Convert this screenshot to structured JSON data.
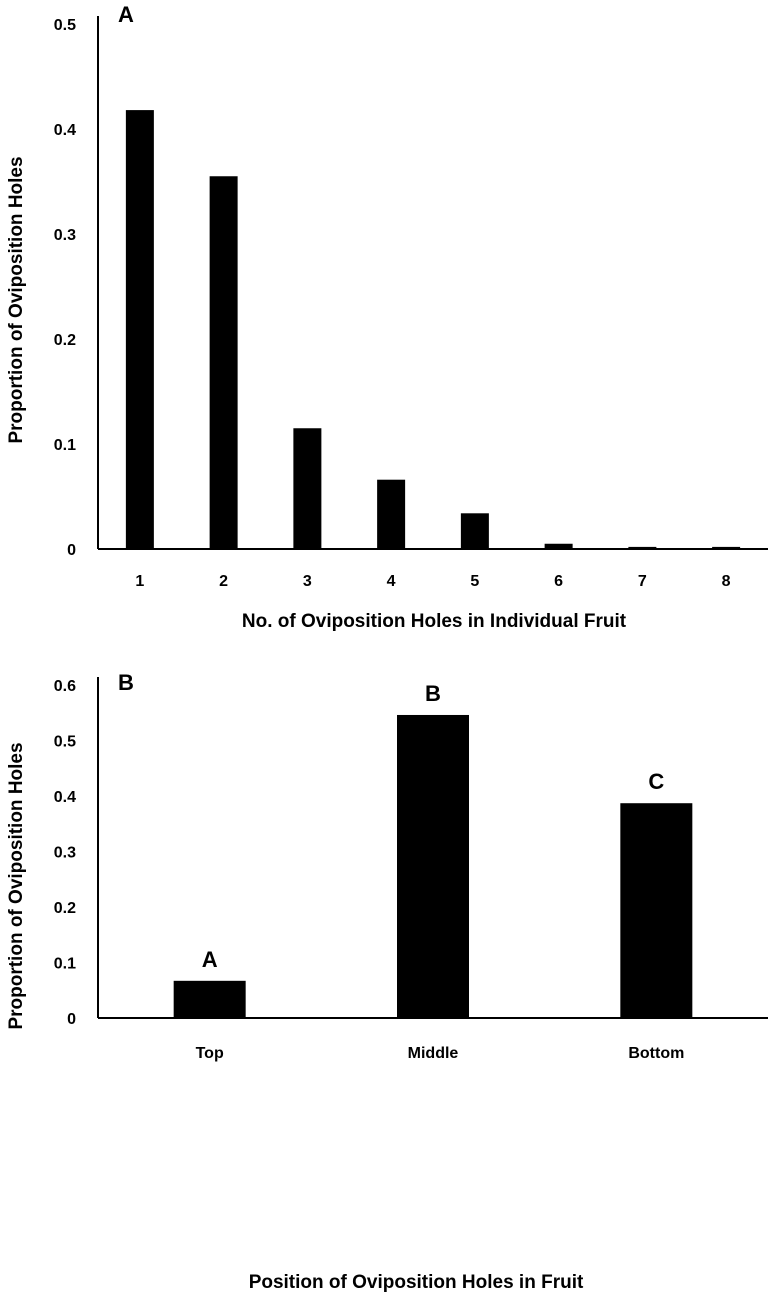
{
  "chart_data": [
    {
      "type": "bar",
      "panel_label": "A",
      "categories": [
        "1",
        "2",
        "3",
        "4",
        "5",
        "6",
        "7",
        "8"
      ],
      "values": [
        0.418,
        0.355,
        0.115,
        0.066,
        0.034,
        0.005,
        0.002,
        0.002
      ],
      "xlabel": "No. of Oviposition Holes in Individual Fruit",
      "ylabel": "Proportion of Oviposition Holes",
      "ylim": [
        0,
        0.5
      ],
      "yticks": [
        "0",
        "0.1",
        "0.2",
        "0.3",
        "0.4",
        "0.5"
      ],
      "bar_color": "#000000",
      "grid": false
    },
    {
      "type": "bar",
      "panel_label": "B",
      "categories": [
        "Top",
        "Middle",
        "Bottom"
      ],
      "values": [
        0.067,
        0.546,
        0.387
      ],
      "bar_labels": [
        "A",
        "B",
        "C"
      ],
      "xlabel": "Position of Oviposition Holes in Fruit",
      "ylabel": "Proportion of Oviposition Holes",
      "ylim": [
        0,
        0.6
      ],
      "yticks": [
        "0",
        "0.1",
        "0.2",
        "0.3",
        "0.4",
        "0.5",
        "0.6"
      ],
      "bar_color": "#000000",
      "grid": false
    }
  ]
}
